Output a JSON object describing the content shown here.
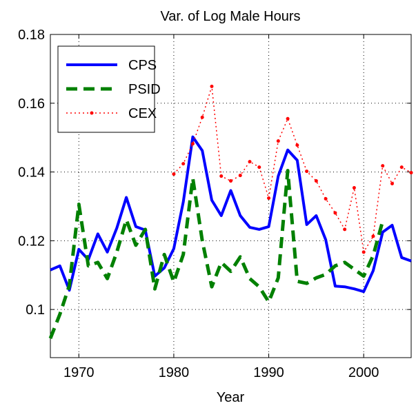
{
  "chart_data": {
    "type": "line",
    "title": "Var. of Log Male Hours",
    "xlabel": "Year",
    "x": [
      1967,
      1968,
      1969,
      1970,
      1971,
      1972,
      1973,
      1974,
      1975,
      1976,
      1977,
      1978,
      1979,
      1980,
      1981,
      1982,
      1983,
      1984,
      1985,
      1986,
      1987,
      1988,
      1989,
      1990,
      1991,
      1992,
      1993,
      1994,
      1995,
      1996,
      1997,
      1998,
      1999,
      2000,
      2001,
      2002,
      2003,
      2004,
      2005
    ],
    "xlim": [
      1967,
      2005
    ],
    "xticks": [
      1970,
      1980,
      1990,
      2000
    ],
    "ylim": [
      0.086,
      0.18
    ],
    "yticks": [
      0.1,
      0.12,
      0.14,
      0.16,
      0.18
    ],
    "grid": true,
    "legend": "upper-left",
    "series": [
      {
        "name": "CPS",
        "color": "#0000ff",
        "style": "solid",
        "values": [
          0.1115,
          0.1127,
          0.1056,
          0.1175,
          0.1145,
          0.122,
          0.1167,
          0.1237,
          0.1326,
          0.1241,
          0.1231,
          0.1097,
          0.1121,
          0.1177,
          0.1313,
          0.1502,
          0.1462,
          0.1318,
          0.1273,
          0.1346,
          0.1273,
          0.1239,
          0.1233,
          0.1241,
          0.1388,
          0.1464,
          0.1434,
          0.1247,
          0.1273,
          0.1203,
          0.1068,
          0.1066,
          0.106,
          0.1052,
          0.1113,
          0.1225,
          0.1245,
          0.1151,
          0.1141
        ]
      },
      {
        "name": "PSID",
        "color": "#008000",
        "style": "dashed",
        "values": [
          0.0916,
          0.0986,
          0.107,
          0.1306,
          0.1127,
          0.1137,
          0.109,
          0.1167,
          0.1261,
          0.1187,
          0.1233,
          0.106,
          0.116,
          0.108,
          0.116,
          0.1382,
          0.12,
          0.1066,
          0.1137,
          0.1111,
          0.1153,
          0.109,
          0.1066,
          0.1022,
          0.1092,
          0.1404,
          0.1082,
          0.1076,
          0.1092,
          0.1102,
          0.1127,
          0.1137,
          0.1117,
          0.1097,
          0.1157,
          0.1257,
          null,
          null,
          null
        ]
      },
      {
        "name": "CEX",
        "color": "#ff0000",
        "style": "dotted-markers",
        "values": [
          null,
          null,
          null,
          null,
          null,
          null,
          null,
          null,
          null,
          null,
          null,
          null,
          null,
          0.1394,
          0.1424,
          0.1482,
          0.1559,
          0.1649,
          0.1388,
          0.1374,
          0.139,
          0.143,
          0.1414,
          0.1324,
          0.149,
          0.1555,
          0.1478,
          0.1402,
          0.1374,
          0.1322,
          0.1281,
          0.1233,
          0.1354,
          0.1167,
          0.1213,
          0.1418,
          0.1366,
          0.1414,
          0.1398
        ]
      }
    ]
  }
}
